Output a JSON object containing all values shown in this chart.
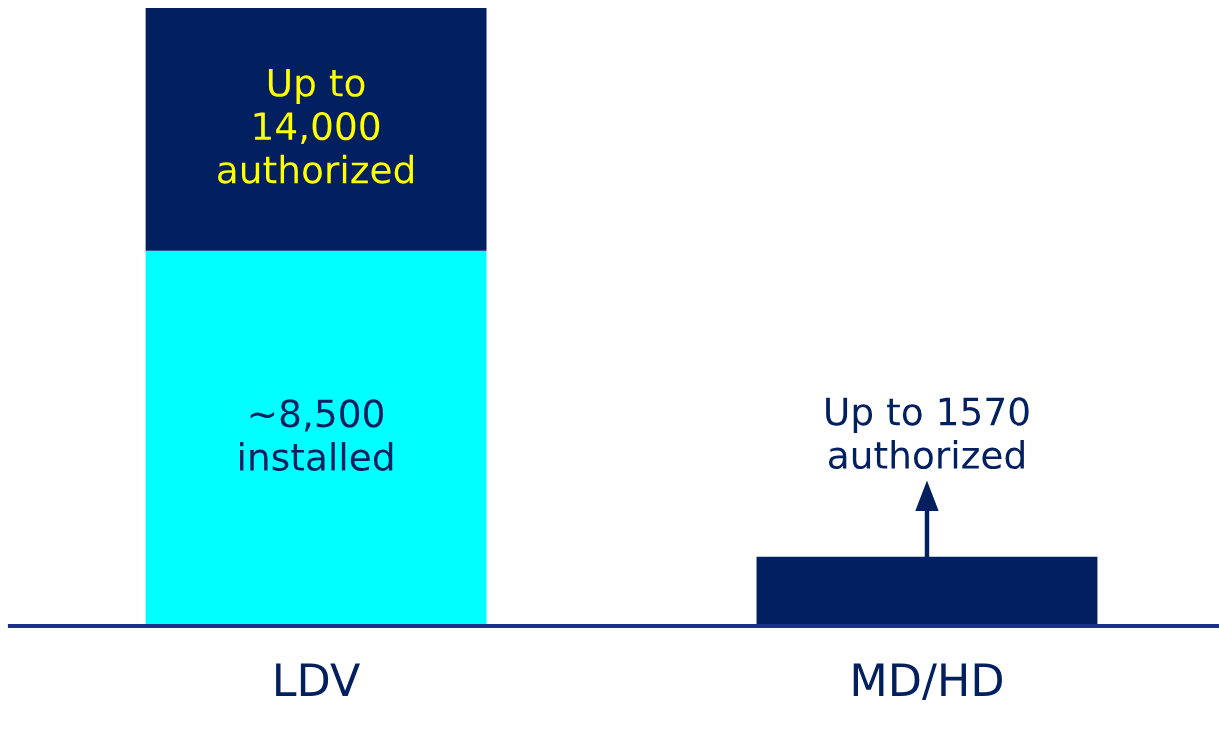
{
  "chart_data": {
    "type": "bar",
    "stacked": true,
    "tick_labels": "x",
    "grid": false,
    "legend": false,
    "categories": [
      "LDV",
      "MD/HD"
    ],
    "series": [
      {
        "color": "#00ffff",
        "values": [
          8500,
          null
        ],
        "value_labels": [
          "~8,500\ninstalled",
          null
        ]
      },
      {
        "color": "#022060",
        "values": [
          5500,
          1570
        ],
        "value_labels": [
          "Up to\n14,000\nauthorized",
          "Up to 1570\nauthorized"
        ]
      }
    ]
  }
}
